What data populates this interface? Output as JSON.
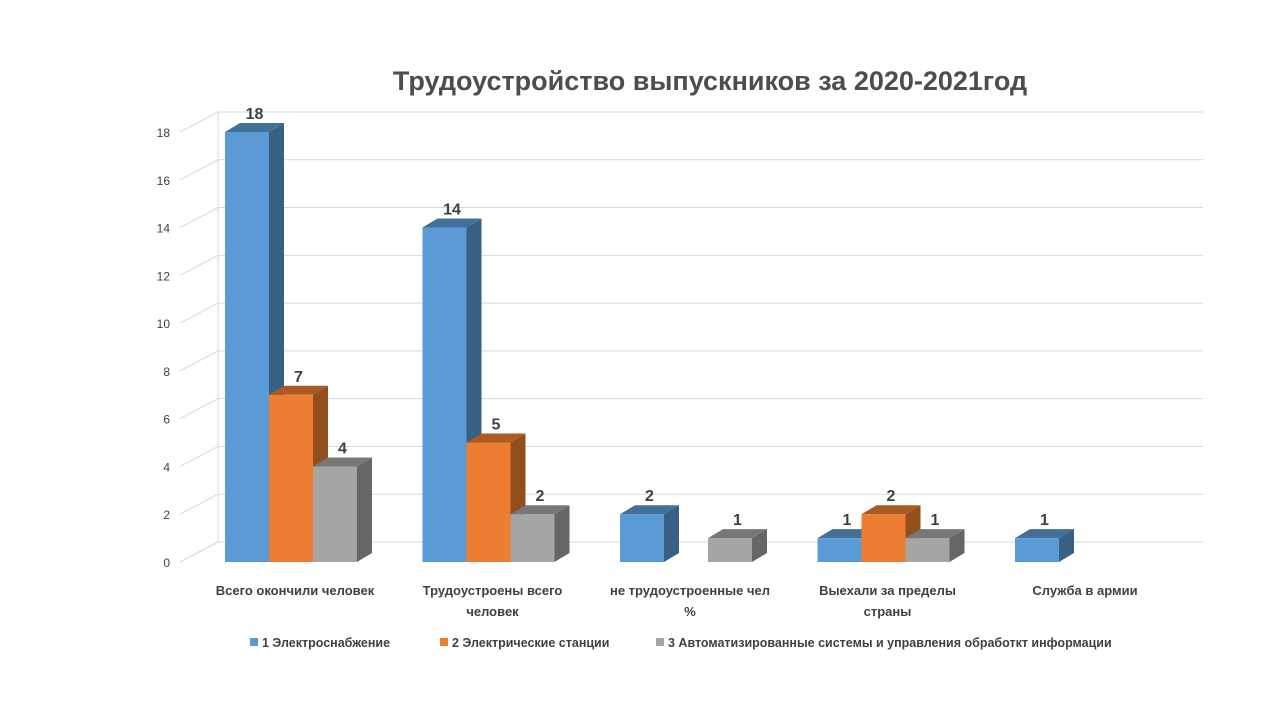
{
  "chart_data": {
    "type": "bar",
    "title": "Трудоустройство  выпускников за 2020-2021год",
    "categories": [
      [
        "Всего окончили человек"
      ],
      [
        "Трудоустроены всего",
        "человек"
      ],
      [
        "не трудоустроенные чел",
        "%"
      ],
      [
        "Выехали за пределы",
        "страны"
      ],
      [
        "Служба в армии"
      ]
    ],
    "series": [
      {
        "name": "1 Электроснабжение",
        "color": "#5b9bd5",
        "values": [
          18,
          14,
          2,
          1,
          1
        ]
      },
      {
        "name": "2 Электрические станции",
        "color": "#ed7d31",
        "values": [
          7,
          5,
          null,
          2,
          null
        ]
      },
      {
        "name": "3 Автоматизированные системы и управления обработкт информации",
        "color": "#a5a5a5",
        "values": [
          4,
          2,
          1,
          1,
          null
        ]
      }
    ],
    "y_ticks": [
      0,
      2,
      4,
      6,
      8,
      10,
      12,
      14,
      16,
      18
    ],
    "ylim": [
      0,
      18
    ],
    "grid": true,
    "legend_position": "bottom",
    "view": "3d-clustered-column"
  }
}
